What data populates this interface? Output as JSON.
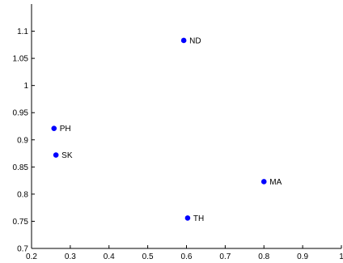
{
  "chart_data": {
    "type": "scatter",
    "title": "",
    "xlabel": "",
    "ylabel": "",
    "xlim": [
      0.2,
      1.0
    ],
    "ylim": [
      0.7,
      1.15
    ],
    "xticks": [
      "0.2",
      "0.3",
      "0.4",
      "0.5",
      "0.6",
      "0.7",
      "0.8",
      "0.9",
      "1"
    ],
    "yticks": [
      "0.7",
      "0.75",
      "0.8",
      "0.85",
      "0.9",
      "0.95",
      "1",
      "1.05",
      "1.1"
    ],
    "grid": false,
    "marker_color": "#0000ff",
    "points": [
      {
        "label": "ND",
        "x": 0.593,
        "y": 1.083
      },
      {
        "label": "PH",
        "x": 0.258,
        "y": 0.921
      },
      {
        "label": "SK",
        "x": 0.263,
        "y": 0.872
      },
      {
        "label": "MA",
        "x": 0.8,
        "y": 0.823
      },
      {
        "label": "TH",
        "x": 0.603,
        "y": 0.756
      }
    ]
  }
}
